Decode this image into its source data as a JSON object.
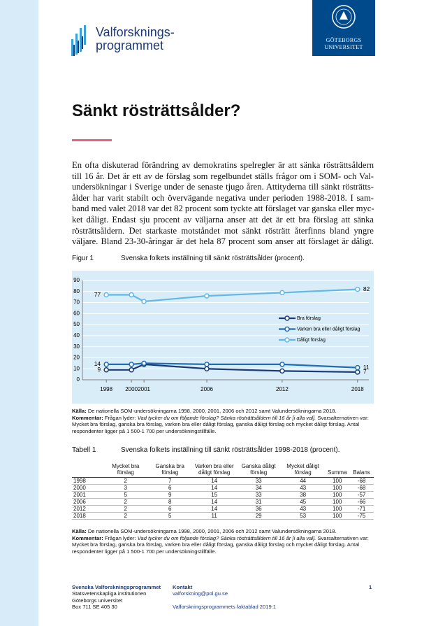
{
  "header": {
    "logo_text": [
      "Valforsknings-",
      "programmet"
    ],
    "university": [
      "GÖTEBORGS",
      "UNIVERSITET"
    ]
  },
  "title": "Sänkt rösträttsålder?",
  "body": {
    "lines": [
      "En ofta diskuterad förändring av demokratins spelregler är att sänka rösträttsåldern",
      "till 16 år. Det är ett av de förslag som regelbundet ställs frågor om i SOM- och Val-",
      "undersökningar i Sverige under de senaste tjugo åren. Attityderna till sänkt rösträtts-",
      "ålder har varit stabilt och övervägande negativa under perioden 1988-2018. I sam-",
      "band med valet 2018 var det 82 procent som tyckte att förslaget var ganska eller myc-",
      "ket dåligt. Endast sju procent av väljarna anser att det är ett bra förslag att sänka",
      "rösträttsåldern. Det starkaste motståndet mot sänkt rösträtt återfinns bland yngre",
      "väljare. Bland 23-30-åringar är det hela 87 procent som anser att förslaget är dåligt."
    ]
  },
  "figure": {
    "label": "Figur 1",
    "caption": "Svenska folkets inställning till sänkt rösträttsålder (procent).",
    "notes": {
      "source_label": "Källa:",
      "source": "De nationella SOM-undersökningarna 1998, 2000, 2001, 2006 och 2012 samt Valundersökningarna 2018.",
      "comment_label": "Kommentar:",
      "question": "Frågan lyder:",
      "question_text": "Vad tycker du om följande förslag? Sänka rösträttsåldern till 16 år [i alla val].",
      "comment": "Svarsalternativen var: Mycket bra förslag, ganska bra förslag, varken bra eller dåligt förslag, ganska dåligt förslag och mycket dåligt förslag. Antal respondenter ligger på 1 500-1 700 per undersökningstillfälle."
    }
  },
  "chart_data": {
    "type": "line",
    "x": [
      1998,
      2000,
      2001,
      2006,
      2012,
      2018
    ],
    "xlim": [
      1996.1,
      2018.9
    ],
    "xticks": [
      1998,
      2000,
      2001,
      2006,
      2012,
      2018
    ],
    "ylim": [
      0,
      90
    ],
    "yticks": [
      0,
      10,
      20,
      30,
      40,
      50,
      60,
      70,
      80,
      90
    ],
    "grid": true,
    "series": [
      {
        "name": "Bra förslag",
        "color": "#1d3a78",
        "values": [
          9,
          9,
          14,
          10,
          8,
          7
        ]
      },
      {
        "name": "Varken bra eller dåligt förslag",
        "color": "#1f6db3",
        "values": [
          14,
          14,
          15,
          14,
          14,
          11
        ]
      },
      {
        "name": "Dåligt förslag",
        "color": "#62b8e6",
        "values": [
          77,
          77,
          71,
          76,
          79,
          82
        ]
      }
    ]
  },
  "table": {
    "label": "Tabell 1",
    "caption": "Svenska folkets inställning till sänkt rösträttsålder 1998-2018 (procent).",
    "columns": [
      "Mycket bra förslag",
      "Ganska bra förslag",
      "Varken bra eller dåligt förslag",
      "Ganska dåligt förslag",
      "Mycket dåligt förslag",
      "Summa",
      "Balans"
    ],
    "rows": [
      [
        "1998",
        "2",
        "7",
        "14",
        "33",
        "44",
        "100",
        "-68"
      ],
      [
        "2000",
        "3",
        "6",
        "14",
        "34",
        "43",
        "100",
        "-68"
      ],
      [
        "2001",
        "5",
        "9",
        "15",
        "33",
        "38",
        "100",
        "-57"
      ],
      [
        "2006",
        "2",
        "8",
        "14",
        "31",
        "45",
        "100",
        "-66"
      ],
      [
        "2012",
        "2",
        "6",
        "14",
        "36",
        "43",
        "100",
        "-71"
      ],
      [
        "2018",
        "2",
        "5",
        "11",
        "29",
        "53",
        "100",
        "-75"
      ]
    ],
    "notes": {
      "source_label": "Källa:",
      "source": "De nationella SOM-undersökningarna 1998, 2000, 2001, 2006 och 2012 samt Valundersökningarna 2018.",
      "comment_label": "Kommentar:",
      "question": "Frågan lyder:",
      "question_text": "Vad tycker du om följande förslag? Sänka rösträttsåldern till 16 år [i alla val].",
      "comment": "Svarsalternativen var: Mycket bra förslag, ganska bra förslag, varken bra eller dåligt förslag, ganska dåligt förslag och mycket dåligt förslag. Antal respondenter ligger på 1 500-1 700 per undersökningstillfälle."
    }
  },
  "footer": {
    "org": "Svenska Valforskningsprogrammet",
    "address": [
      "Statsvetenskapliga institutionen",
      "Göteborgs universitet",
      "Box 711 SE 405 30"
    ],
    "contact_label": "Kontakt",
    "email": "valforskning@pol.gu.se",
    "publication": "Valforskningsprogrammets faktablad 2019:1",
    "page": "1"
  }
}
